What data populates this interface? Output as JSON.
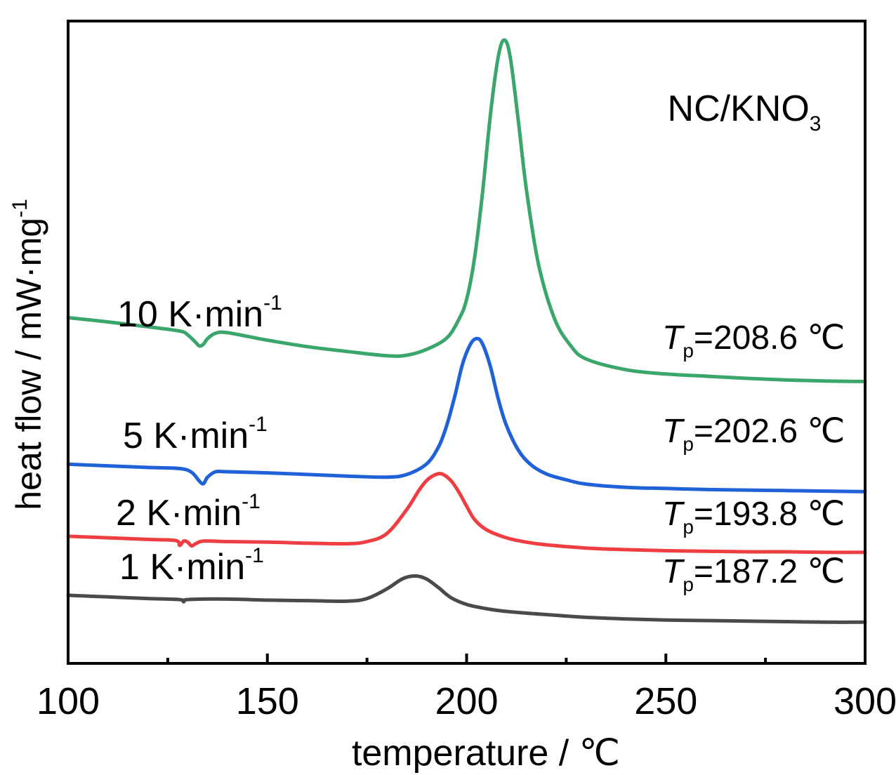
{
  "chart_data": {
    "type": "line",
    "title": "NC/KNO3",
    "title_main": "NC/KNO",
    "title_sub": "3",
    "xlabel": "temperature / ℃",
    "ylabel_main": "heat flow / mW·mg",
    "ylabel_sup": "-1",
    "xlim": [
      100,
      300
    ],
    "ylim": [
      -0.2,
      1.0
    ],
    "y_ticks_shown": false,
    "x_ticks": [
      100,
      150,
      200,
      250,
      300
    ],
    "x_tick_labels": [
      "100",
      "150",
      "200",
      "250",
      "300"
    ],
    "x_minor_ticks": [
      125,
      175,
      225,
      275
    ],
    "grid": false,
    "legend": "none",
    "series": [
      {
        "name": "10 K·min-1",
        "label_main": "10 K·min",
        "label_sup": "-1",
        "color": "#3aa66b",
        "peak_label": "208.6 ℃",
        "peak_temperature": 208.6,
        "x": [
          100,
          110,
          120,
          128,
          130,
          132,
          133,
          134,
          135,
          137,
          140,
          150,
          160,
          170,
          180,
          185,
          190,
          195,
          198,
          200,
          202,
          204,
          206,
          208,
          209.5,
          211,
          213,
          215,
          218,
          222,
          226,
          230,
          240,
          250,
          260,
          270,
          280,
          290,
          300
        ],
        "y": [
          0.517,
          0.509,
          0.5,
          0.492,
          0.485,
          0.471,
          0.464,
          0.468,
          0.478,
          0.488,
          0.489,
          0.475,
          0.463,
          0.454,
          0.446,
          0.447,
          0.458,
          0.479,
          0.513,
          0.551,
          0.629,
          0.75,
          0.897,
          1.005,
          1.034,
          1.0,
          0.882,
          0.756,
          0.618,
          0.516,
          0.466,
          0.44,
          0.42,
          0.412,
          0.408,
          0.404,
          0.401,
          0.399,
          0.398
        ]
      },
      {
        "name": "5 K·min-1",
        "label_main": "5 K·min",
        "label_sup": "-1",
        "color": "#1f62d8",
        "peak_label": "202.6 ℃",
        "peak_temperature": 202.6,
        "x": [
          100,
          110,
          120,
          128,
          131,
          133,
          134,
          135,
          137,
          140,
          150,
          160,
          170,
          180,
          185,
          190,
          193,
          195,
          197,
          199,
          201,
          202.6,
          204,
          206,
          208,
          210,
          213,
          216,
          220,
          225,
          230,
          240,
          250,
          260,
          270,
          280,
          290,
          300
        ],
        "y": [
          0.244,
          0.241,
          0.238,
          0.236,
          0.229,
          0.212,
          0.208,
          0.22,
          0.23,
          0.23,
          0.228,
          0.225,
          0.222,
          0.22,
          0.225,
          0.245,
          0.277,
          0.316,
          0.37,
          0.431,
          0.468,
          0.478,
          0.468,
          0.425,
          0.364,
          0.316,
          0.27,
          0.244,
          0.226,
          0.215,
          0.207,
          0.201,
          0.199,
          0.197,
          0.196,
          0.195,
          0.194,
          0.193
        ]
      },
      {
        "name": "2 K·min-1",
        "label_main": "2 K·min",
        "label_sup": "-1",
        "color": "#ee3e42",
        "peak_label": "193.8 ℃",
        "peak_temperature": 193.8,
        "x": [
          100,
          110,
          120,
          127,
          128,
          129,
          130,
          131,
          132,
          134,
          140,
          150,
          160,
          170,
          175,
          180,
          185,
          188,
          190,
          192,
          193.8,
          196,
          198,
          200,
          202,
          205,
          210,
          215,
          220,
          230,
          240,
          250,
          260,
          270,
          280,
          290,
          300
        ],
        "y": [
          0.11,
          0.107,
          0.104,
          0.102,
          0.093,
          0.101,
          0.099,
          0.092,
          0.096,
          0.101,
          0.1,
          0.099,
          0.097,
          0.096,
          0.1,
          0.115,
          0.16,
          0.195,
          0.214,
          0.224,
          0.226,
          0.214,
          0.193,
          0.166,
          0.141,
          0.122,
          0.107,
          0.099,
          0.094,
          0.088,
          0.085,
          0.083,
          0.082,
          0.081,
          0.081,
          0.08,
          0.08
        ]
      },
      {
        "name": "1 K·min-1",
        "label_main": "1 K·min",
        "label_sup": "-1",
        "color": "#4a4a4a",
        "peak_label": "187.2 ℃",
        "peak_temperature": 187.2,
        "x": [
          100,
          110,
          120,
          128,
          129,
          130,
          140,
          150,
          160,
          170,
          175,
          180,
          184,
          187.2,
          190,
          193,
          196,
          200,
          205,
          210,
          220,
          230,
          240,
          250,
          260,
          270,
          280,
          290,
          300
        ],
        "y": [
          0.0,
          -0.003,
          -0.006,
          -0.008,
          -0.012,
          -0.008,
          -0.007,
          -0.009,
          -0.01,
          -0.011,
          -0.006,
          0.012,
          0.031,
          0.036,
          0.03,
          0.014,
          -0.004,
          -0.017,
          -0.025,
          -0.03,
          -0.036,
          -0.041,
          -0.044,
          -0.046,
          -0.047,
          -0.048,
          -0.049,
          -0.05,
          -0.05
        ]
      }
    ]
  },
  "labels": {
    "tp_symbol": "T",
    "tp_sub": "p",
    "tp_equals": "="
  }
}
